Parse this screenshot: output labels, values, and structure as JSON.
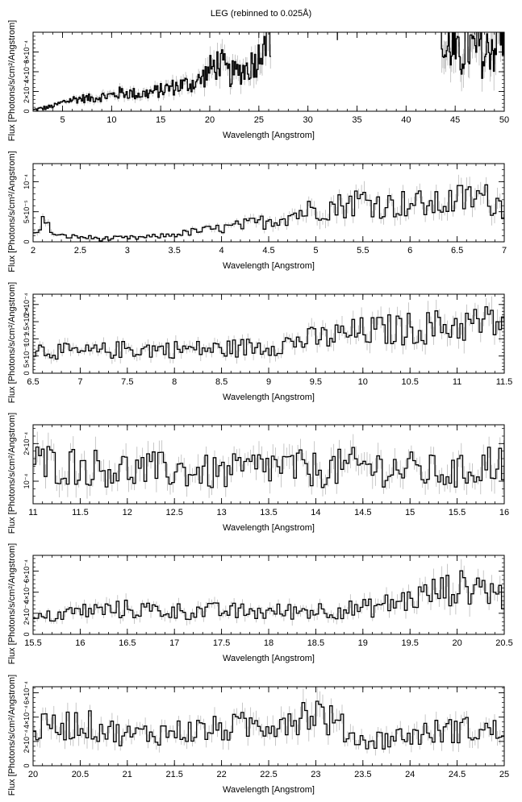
{
  "title": "LEG (rebinned to 0.025Å)",
  "chart_data": [
    {
      "type": "line",
      "xlabel": "Wavelength [Angstrom]",
      "ylabel": "Flux [Photons/s/cm²/Angstrom]",
      "xlim": [
        2,
        50
      ],
      "ylim": [
        0,
        0.0008
      ],
      "xticks": [
        5,
        10,
        15,
        20,
        25,
        30,
        35,
        40,
        45,
        50
      ],
      "yticks": [
        {
          "v": 0,
          "label": "0"
        },
        {
          "v": 0.0002,
          "label": "2×10⁻⁴"
        },
        {
          "v": 0.0004,
          "label": "4×10⁻⁴"
        },
        {
          "v": 0.0006,
          "label": "6×10⁻⁴"
        }
      ],
      "x": [
        2,
        3,
        4,
        5,
        6,
        7,
        8,
        9,
        10,
        11,
        12,
        13,
        14,
        15,
        16,
        17,
        18,
        19,
        20,
        21,
        22,
        23,
        24,
        25,
        25.5,
        26,
        33
      ],
      "y": [
        1e-05,
        3e-05,
        5e-05,
        9e-05,
        0.00012,
        0.00013,
        0.00013,
        0.00015,
        0.00016,
        0.00019,
        0.00018,
        0.00017,
        0.00019,
        0.00021,
        0.00024,
        0.00026,
        0.00028,
        0.00031,
        0.00042,
        0.0005,
        0.00037,
        0.0004,
        0.00045,
        0.00055,
        0.0008,
        0.0008,
        0.0008
      ],
      "segments": [
        {
          "x": [
            43.5,
            44,
            44.5,
            45,
            45.5,
            46,
            46.5,
            47,
            47.5,
            48,
            48.5,
            49,
            49.5,
            50
          ],
          "y": [
            0.0008,
            0.00055,
            0.0007,
            0.0006,
            0.0005,
            0.0007,
            0.00065,
            0.0006,
            0.0007,
            0.0005,
            0.0007,
            0.00065,
            0.0008,
            0.0008
          ]
        }
      ]
    },
    {
      "type": "line",
      "xlabel": "Wavelength [Angstrom]",
      "ylabel": "Flux [Photons/s/cm²/Angstrom]",
      "xlim": [
        2,
        7
      ],
      "ylim": [
        0,
        0.00013
      ],
      "xticks": [
        2,
        2.5,
        3,
        3.5,
        4,
        4.5,
        5,
        5.5,
        6,
        6.5,
        7
      ],
      "yticks": [
        {
          "v": 0,
          "label": "0"
        },
        {
          "v": 5e-05,
          "label": "5×10⁻⁵"
        },
        {
          "v": 0.0001,
          "label": "10⁻⁴"
        }
      ],
      "x": [
        2,
        2.1,
        2.25,
        2.5,
        2.75,
        3,
        3.25,
        3.5,
        3.75,
        4,
        4.25,
        4.5,
        4.75,
        5,
        5.25,
        5.5,
        5.75,
        6,
        6.25,
        6.5,
        6.75,
        7
      ],
      "y": [
        1e-05,
        3.5e-05,
        1e-05,
        8e-06,
        5e-06,
        6e-06,
        8e-06,
        1.2e-05,
        1.8e-05,
        2.2e-05,
        2.8e-05,
        3.5e-05,
        4.5e-05,
        5.5e-05,
        6e-05,
        7e-05,
        6e-05,
        6.5e-05,
        6e-05,
        7e-05,
        7.5e-05,
        6e-05
      ]
    },
    {
      "type": "line",
      "xlabel": "Wavelength [Angstrom]",
      "ylabel": "Flux [Photons/s/cm²/Angstrom]",
      "xlim": [
        6.5,
        11.5
      ],
      "ylim": [
        0,
        0.00023
      ],
      "xticks": [
        6.5,
        7,
        7.5,
        8,
        8.5,
        9,
        9.5,
        10,
        10.5,
        11,
        11.5
      ],
      "yticks": [
        {
          "v": 0,
          "label": "0"
        },
        {
          "v": 5e-05,
          "label": "5×10⁻⁵"
        },
        {
          "v": 0.0001,
          "label": "10⁻⁴"
        },
        {
          "v": 0.00015,
          "label": "1.5×10⁻⁴"
        },
        {
          "v": 0.0002,
          "label": "2×10⁻⁴"
        }
      ],
      "x": [
        6.5,
        7,
        7.5,
        8,
        8.5,
        9,
        9.5,
        10,
        10.5,
        11,
        11.5
      ],
      "y": [
        7e-05,
        6e-05,
        7e-05,
        7e-05,
        7e-05,
        8e-05,
        0.0001,
        0.00012,
        0.00013,
        0.00014,
        0.00015
      ]
    },
    {
      "type": "line",
      "xlabel": "Wavelength [Angstrom]",
      "ylabel": "Flux [Photons/s/cm²/Angstrom]",
      "xlim": [
        11,
        16
      ],
      "ylim": [
        4e-05,
        0.00025
      ],
      "xticks": [
        11,
        11.5,
        12,
        12.5,
        13,
        13.5,
        14,
        14.5,
        15,
        15.5,
        16
      ],
      "yticks": [
        {
          "v": 0.0001,
          "label": "10⁻⁴"
        },
        {
          "v": 0.0002,
          "label": "2×10⁻⁴"
        }
      ],
      "x": [
        11,
        11.5,
        12,
        12.5,
        13,
        13.5,
        14,
        14.5,
        15,
        15.5,
        16
      ],
      "y": [
        0.00015,
        0.00014,
        0.00013,
        0.00013,
        0.00012,
        0.00014,
        0.00013,
        0.00014,
        0.00013,
        0.00012,
        0.00016
      ]
    },
    {
      "type": "line",
      "xlabel": "Wavelength [Angstrom]",
      "ylabel": "Flux [Photons/s/cm²/Angstrom]",
      "xlim": [
        15.5,
        20.5
      ],
      "ylim": [
        0,
        0.00075
      ],
      "xticks": [
        15.5,
        16,
        16.5,
        17,
        17.5,
        18,
        18.5,
        19,
        19.5,
        20,
        20.5
      ],
      "yticks": [
        {
          "v": 0,
          "label": "0"
        },
        {
          "v": 0.0002,
          "label": "2×10⁻⁴"
        },
        {
          "v": 0.0004,
          "label": "4×10⁻⁴"
        },
        {
          "v": 0.0006,
          "label": "6×10⁻⁴"
        }
      ],
      "x": [
        15.5,
        16,
        16.5,
        17,
        17.5,
        18,
        18.5,
        19,
        19.5,
        19.75,
        20,
        20.25,
        20.5
      ],
      "y": [
        0.00014,
        0.00022,
        0.00024,
        0.00022,
        0.00022,
        0.00021,
        0.00023,
        0.00024,
        0.00033,
        0.0004,
        0.00044,
        0.00046,
        0.00035
      ]
    },
    {
      "type": "line",
      "xlabel": "Wavelength [Angstrom]",
      "ylabel": "Flux [Photons/s/cm²/Angstrom]",
      "xlim": [
        20,
        25
      ],
      "ylim": [
        0,
        0.00065
      ],
      "xticks": [
        20,
        20.5,
        21,
        21.5,
        22,
        22.5,
        23,
        23.5,
        24,
        24.5,
        25
      ],
      "yticks": [
        {
          "v": 0,
          "label": "0"
        },
        {
          "v": 0.0002,
          "label": "2×10⁻⁴"
        },
        {
          "v": 0.0004,
          "label": "4×10⁻⁴"
        },
        {
          "v": 0.0006,
          "label": "6×10⁻⁴"
        }
      ],
      "x": [
        20,
        20.5,
        21,
        21.5,
        22,
        22.5,
        23,
        23.5,
        24,
        24.5,
        25
      ],
      "y": [
        0.0003,
        0.00035,
        0.00025,
        0.00028,
        0.0003,
        0.00035,
        0.00045,
        0.0002,
        0.00025,
        0.0003,
        0.00028
      ]
    }
  ]
}
